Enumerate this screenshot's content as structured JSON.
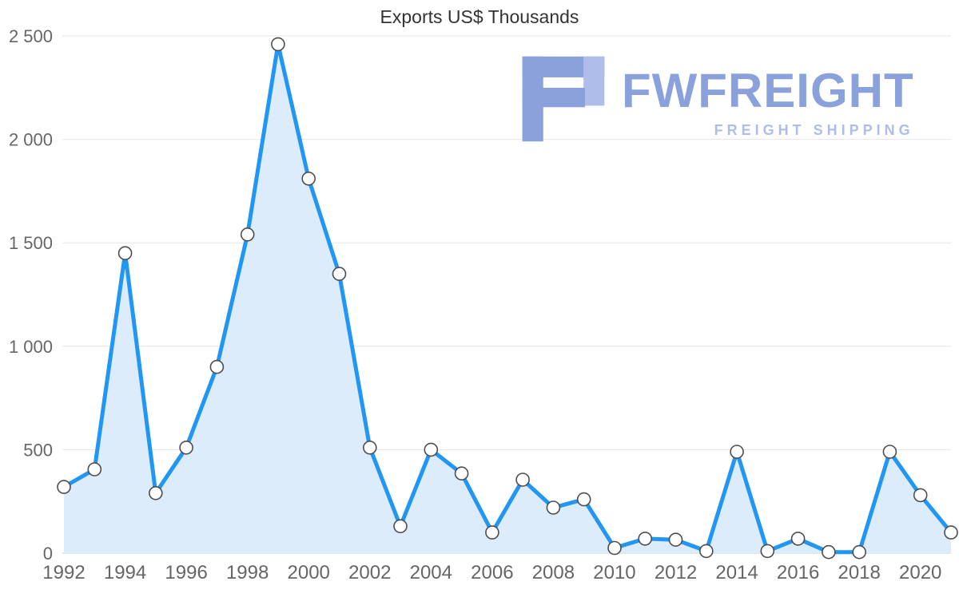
{
  "chart_data": {
    "type": "area",
    "title": "Exports US$ Thousands",
    "x": [
      1992,
      1993,
      1994,
      1995,
      1996,
      1997,
      1998,
      1999,
      2000,
      2001,
      2002,
      2003,
      2004,
      2005,
      2006,
      2007,
      2008,
      2009,
      2010,
      2011,
      2012,
      2013,
      2014,
      2015,
      2016,
      2017,
      2018,
      2019,
      2020,
      2021
    ],
    "values": [
      320,
      405,
      1450,
      290,
      510,
      900,
      1540,
      2460,
      1810,
      1350,
      510,
      130,
      500,
      385,
      100,
      355,
      220,
      260,
      25,
      70,
      65,
      10,
      490,
      10,
      70,
      5,
      5,
      490,
      280,
      100
    ],
    "ylim": [
      0,
      2500
    ],
    "ytick_step": 500,
    "ytick_labels": [
      "0",
      "500",
      "1 000",
      "1 500",
      "2 000",
      "2 500"
    ],
    "xtick_labels": [
      "1992",
      "1994",
      "1996",
      "1998",
      "2000",
      "2002",
      "2004",
      "2006",
      "2008",
      "2010",
      "2012",
      "2014",
      "2016",
      "2018",
      "2020"
    ],
    "grid": true,
    "legend": "none",
    "colors": {
      "line": "#2196f3",
      "fill": "#dcecfa",
      "marker_fill": "#ffffff",
      "marker_stroke": "#4d4d4d",
      "grid": "#e6e6e6",
      "axis_line": "#c8c8c8",
      "tick_label": "#666666",
      "title": "#333333"
    }
  },
  "watermark": {
    "name": "FWFREIGHT",
    "subtitle": "FREIGHT SHIPPING",
    "color": "#8ba1dc",
    "accent_color": "#aebde9"
  }
}
